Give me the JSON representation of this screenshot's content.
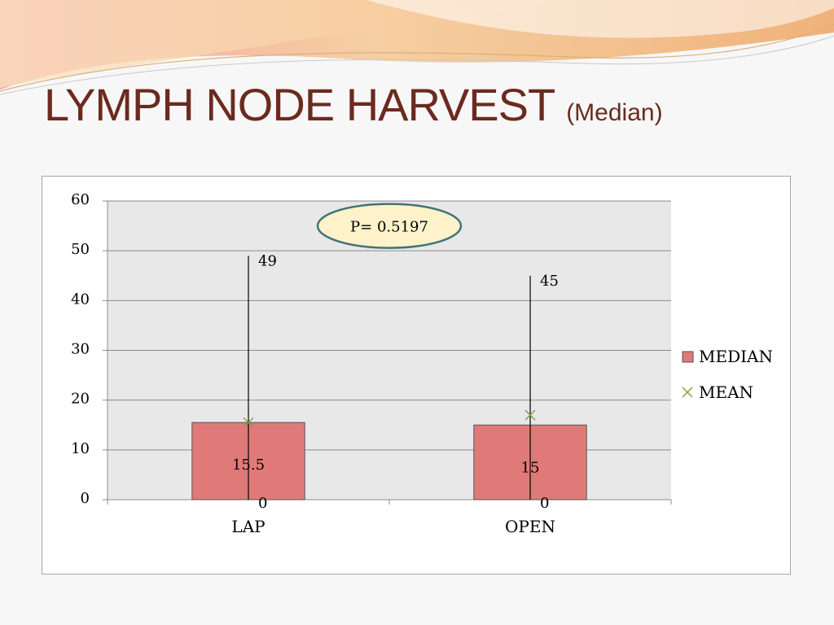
{
  "slide": {
    "title": "LYMPH NODE HARVEST",
    "subtitle": "(Median)"
  },
  "colors": {
    "title": "#6b2a1f",
    "bar_fill": "#e07a78",
    "bar_stroke": "#555555",
    "mean_marker": "#7aa23a",
    "plot_bg": "#e8e8e8",
    "p_box_fill": "#fdf2c9",
    "p_box_stroke": "#3f7478"
  },
  "annotation": {
    "p_value": "P= 0.5197"
  },
  "chart_data": {
    "type": "bar",
    "categories": [
      "LAP",
      "OPEN"
    ],
    "series": [
      {
        "name": "MEDIAN",
        "kind": "bar",
        "values": [
          15.5,
          15
        ],
        "data_labels": [
          "15.5",
          "15"
        ]
      },
      {
        "name": "MEAN",
        "kind": "marker",
        "marker": "x",
        "values": [
          15.5,
          17
        ]
      }
    ],
    "range": {
      "high": [
        49,
        45
      ],
      "low": [
        0,
        0
      ],
      "high_labels": [
        "49",
        "45"
      ],
      "low_labels": [
        "0",
        "0"
      ]
    },
    "ylim": [
      0,
      60
    ],
    "yticks": [
      0,
      10,
      20,
      30,
      40,
      50,
      60
    ],
    "ytick_labels": [
      "0",
      "10",
      "20",
      "30",
      "40",
      "50",
      "60"
    ],
    "grid": true,
    "legend": {
      "position": "right",
      "entries": [
        "MEDIAN",
        "MEAN"
      ]
    }
  }
}
